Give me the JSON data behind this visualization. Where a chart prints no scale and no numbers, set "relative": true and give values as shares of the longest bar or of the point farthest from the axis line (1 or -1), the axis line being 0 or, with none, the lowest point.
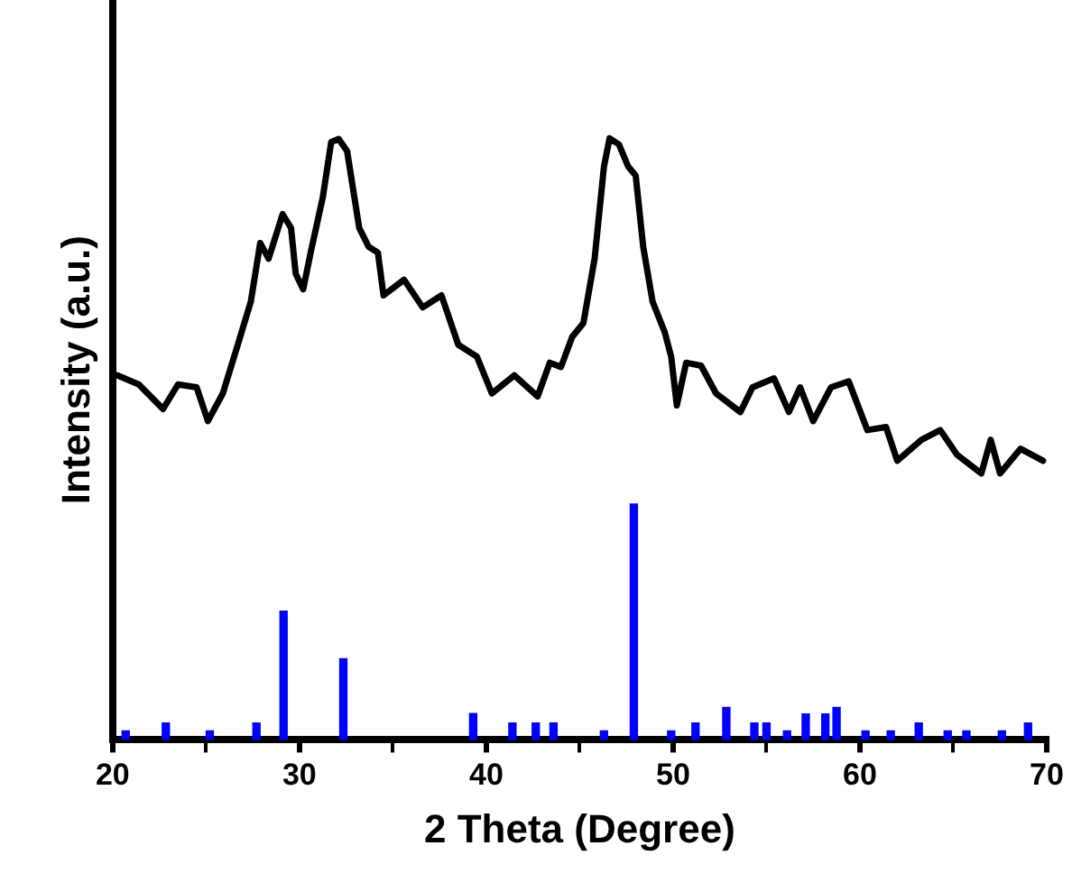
{
  "chart_data": {
    "type": "line",
    "xlabel": "2 Theta (Degree)",
    "ylabel": "Intensity (a.u.)",
    "relative": true,
    "grid": false,
    "legend": false,
    "marker": "none",
    "xlim": [
      20,
      70
    ],
    "xticks": [
      20,
      {
        "value": 25,
        "label": null
      },
      30,
      {
        "value": 35,
        "label": null
      },
      40,
      {
        "value": 45,
        "label": null
      },
      50,
      {
        "value": 55,
        "label": null
      },
      60,
      {
        "value": 65,
        "label": null
      },
      70
    ],
    "series": [
      {
        "color": "#000000",
        "x": [
          20.26,
          21.4,
          22.7,
          23.5,
          24.5,
          25.1,
          25.9,
          26.7,
          27.4,
          27.9,
          28.35,
          29.1,
          29.55,
          29.8,
          30.2,
          30.6,
          31.25,
          31.7,
          32.1,
          32.55,
          33.2,
          33.7,
          34.2,
          34.5,
          35.6,
          36.6,
          37.6,
          38.5,
          39.5,
          40.3,
          41.5,
          42.75,
          43.4,
          44.0,
          44.6,
          45.2,
          45.8,
          46.3,
          46.6,
          47.1,
          47.6,
          48.0,
          48.4,
          48.9,
          49.55,
          49.9,
          50.2,
          50.7,
          51.5,
          52.3,
          53.6,
          54.25,
          55.4,
          56.2,
          56.8,
          57.5,
          58.45,
          59.4,
          60.4,
          61.4,
          62.0,
          63.3,
          64.3,
          65.2,
          66.5,
          67.0,
          67.5,
          68.6,
          69.8
        ],
        "values": [
          0.606,
          0.591,
          0.55,
          0.591,
          0.586,
          0.53,
          0.576,
          0.657,
          0.729,
          0.826,
          0.8,
          0.874,
          0.851,
          0.775,
          0.749,
          0.81,
          0.902,
          0.994,
          0.999,
          0.979,
          0.851,
          0.82,
          0.81,
          0.739,
          0.765,
          0.719,
          0.739,
          0.657,
          0.637,
          0.576,
          0.606,
          0.571,
          0.627,
          0.62,
          0.67,
          0.693,
          0.8,
          0.953,
          1.0,
          0.99,
          0.953,
          0.938,
          0.82,
          0.729,
          0.678,
          0.637,
          0.556,
          0.627,
          0.622,
          0.576,
          0.545,
          0.586,
          0.601,
          0.545,
          0.586,
          0.53,
          0.586,
          0.596,
          0.515,
          0.52,
          0.464,
          0.499,
          0.515,
          0.474,
          0.443,
          0.499,
          0.443,
          0.484,
          0.464
        ]
      },
      {
        "type": "bar",
        "color": "#0000ff",
        "x": [
          20.7,
          22.85,
          25.2,
          27.7,
          29.15,
          32.35,
          39.3,
          41.4,
          42.65,
          43.6,
          46.3,
          47.9,
          49.9,
          51.2,
          52.85,
          54.35,
          55.0,
          56.1,
          57.1,
          58.15,
          58.75,
          60.3,
          61.65,
          63.15,
          64.7,
          65.7,
          67.6,
          69.0
        ],
        "values": [
          0.015,
          0.028,
          0.015,
          0.028,
          0.214,
          0.135,
          0.044,
          0.028,
          0.028,
          0.028,
          0.015,
          0.392,
          0.015,
          0.028,
          0.054,
          0.028,
          0.028,
          0.015,
          0.043,
          0.043,
          0.054,
          0.015,
          0.015,
          0.028,
          0.015,
          0.015,
          0.015,
          0.028
        ]
      }
    ]
  }
}
